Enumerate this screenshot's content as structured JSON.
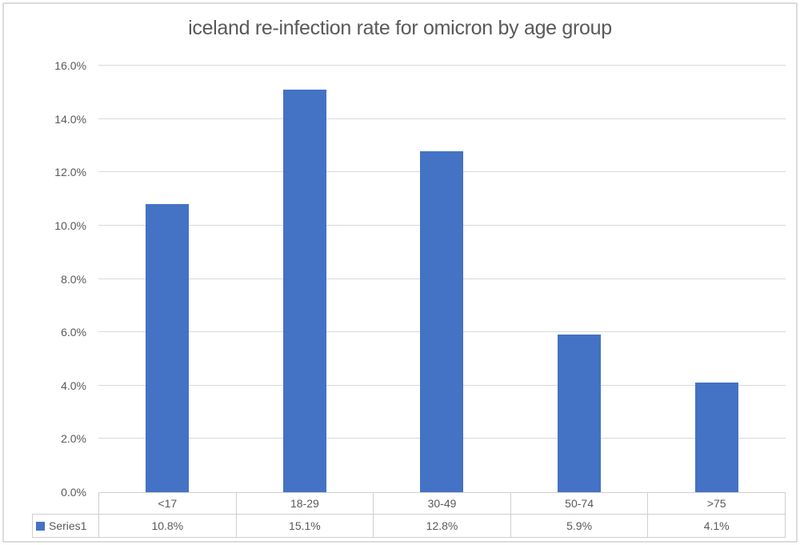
{
  "chart_data": {
    "type": "bar",
    "title": "iceland re-infection rate for omicron by age group",
    "categories": [
      "<17",
      "18-29",
      "30-49",
      "50-74",
      ">75"
    ],
    "series": [
      {
        "name": "Series1",
        "values": [
          10.8,
          15.1,
          12.8,
          5.9,
          4.1
        ],
        "value_labels": [
          "10.8%",
          "15.1%",
          "12.8%",
          "5.9%",
          "4.1%"
        ]
      }
    ],
    "xlabel": "",
    "ylabel": "",
    "ylim": [
      0,
      16
    ],
    "y_tick_step": 2,
    "y_tick_labels": [
      "0.0%",
      "2.0%",
      "4.0%",
      "6.0%",
      "8.0%",
      "10.0%",
      "12.0%",
      "14.0%",
      "16.0%"
    ],
    "grid": true,
    "legend_position": "data-table-left",
    "data_table_shown": true
  },
  "colors": {
    "bar": "#4472C4",
    "text": "#595959",
    "gridline": "#D9D9D9",
    "table_border": "#D0CECE",
    "frame_border": "#DBDBDB",
    "background": "#FFFFFF"
  }
}
